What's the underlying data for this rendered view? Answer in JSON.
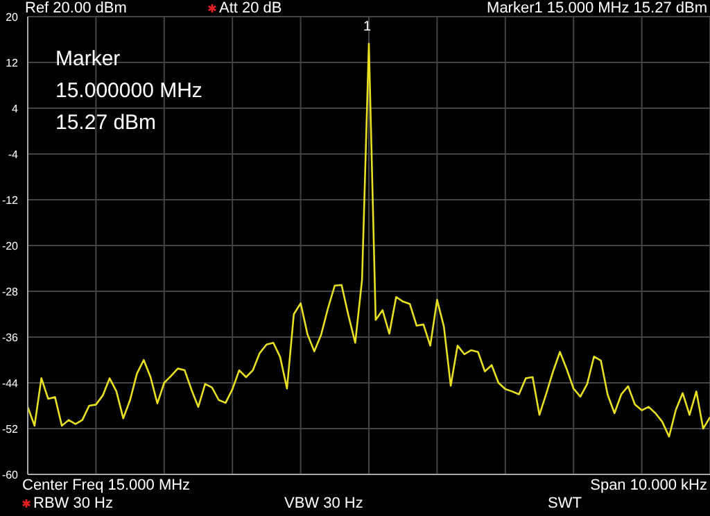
{
  "chart_data": {
    "type": "line",
    "categories": [
      null,
      null,
      null,
      null,
      null,
      null,
      null,
      null,
      null,
      null,
      null,
      null,
      null,
      null,
      null,
      null,
      null,
      null,
      null,
      null,
      null,
      null,
      null,
      null,
      null,
      null,
      null,
      null,
      null,
      null,
      null,
      null,
      null,
      null,
      null,
      null,
      null,
      null,
      null,
      null,
      null,
      null,
      null,
      null,
      null,
      null,
      null,
      null,
      null,
      null,
      null,
      null,
      null,
      null,
      null,
      null,
      null,
      null,
      null,
      null,
      null,
      null,
      null,
      null,
      null,
      null,
      null,
      null,
      null,
      null,
      null,
      null,
      null,
      null,
      null,
      null,
      null,
      null,
      null,
      null,
      null,
      null,
      null,
      null,
      null,
      null,
      null,
      null,
      null,
      null,
      null,
      null,
      null,
      null,
      null,
      null,
      null,
      null,
      null,
      null,
      null
    ],
    "ylim": [
      -60,
      20
    ],
    "yticks": [
      -60,
      -52,
      -44,
      -36,
      -28,
      -20,
      -12,
      -4,
      4,
      12,
      20
    ],
    "grid": true,
    "tick_labels": "y",
    "marker": "none",
    "line_style": "solid",
    "series": [
      {
        "color": "#e8e020",
        "values": [
          -48.2,
          -51.5,
          -43.2,
          -46.8,
          -46.5,
          -51.5,
          -50.5,
          -51.2,
          -50.5,
          -48,
          -47.8,
          -46.2,
          -43.2,
          -45.5,
          -50.2,
          -47,
          -42.4,
          -40,
          -43,
          -47.6,
          -44,
          -42.8,
          -41.5,
          -41.8,
          -45.2,
          -48.2,
          -44.2,
          -44.8,
          -47,
          -47.5,
          -45.1,
          -41.8,
          -43,
          -41.8,
          -38.8,
          -37.3,
          -37,
          -39.5,
          -45,
          -32,
          -30.1,
          -35.5,
          -38.5,
          -35.6,
          -31,
          -27,
          -26.9,
          -32.2,
          -37,
          -26,
          15.27,
          -33,
          -31.3,
          -35.4,
          -29,
          -29.8,
          -30.2,
          -34,
          -33.8,
          -37.5,
          -29.5,
          -34.2,
          -44.5,
          -37.5,
          -39,
          -38.3,
          -38.6,
          -42,
          -40.9,
          -44,
          -45.1,
          -45.5,
          -46,
          -43.2,
          -43,
          -49.6,
          -45.9,
          -42,
          -38.6,
          -41.6,
          -45,
          -46.4,
          -44.2,
          -39.4,
          -40.1,
          -46.1,
          -49.3,
          -46,
          -44.6,
          -47.8,
          -48.8,
          -48.2,
          -49.3,
          -50.8,
          -53.4,
          -48.7,
          -45.8,
          -49.6,
          -45.5,
          -52,
          -50
        ]
      }
    ],
    "annotations": [
      "1",
      "Ref 20.00 dBm",
      "Att 20 dB",
      "Marker1 15.000 MHz 15.27 dBm",
      "Marker",
      "15.000000 MHz",
      "15.27 dBm",
      "Center Freq 15.000 MHz",
      "Span 10.000 kHz",
      "RBW 30 Hz",
      "VBW 30 Hz",
      "SWT"
    ]
  }
}
